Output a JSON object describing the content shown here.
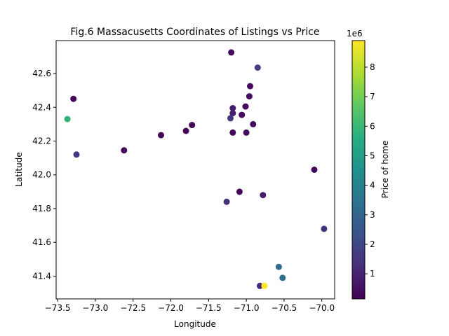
{
  "chart_data": {
    "type": "scatter",
    "title": "Fig.6 Massacusetts Coordinates of Listings vs Price",
    "xlabel": "Longitude",
    "ylabel": "Latitude",
    "xlim": [
      -73.52,
      -69.83
    ],
    "ylim": [
      41.265,
      42.795
    ],
    "xticks": [
      -73.5,
      -73.0,
      -72.5,
      -72.0,
      -71.5,
      -71.0,
      -70.5,
      -70.0
    ],
    "xtick_labels": [
      "−73.5",
      "−73.0",
      "−72.5",
      "−72.0",
      "−71.5",
      "−71.0",
      "−70.5",
      "−70.0"
    ],
    "yticks": [
      41.4,
      41.6,
      41.8,
      42.0,
      42.2,
      42.4,
      42.6
    ],
    "ytick_labels": [
      "41.4",
      "41.6",
      "41.8",
      "42.0",
      "42.2",
      "42.4",
      "42.6"
    ],
    "grid": false,
    "colorbar": {
      "label": "Price of home",
      "multiplier_label": "1e6",
      "range": [
        0.15,
        8.9
      ],
      "ticks": [
        1,
        2,
        3,
        4,
        5,
        6,
        7,
        8
      ],
      "tick_labels": [
        "1",
        "2",
        "3",
        "4",
        "5",
        "6",
        "7",
        "8"
      ],
      "colormap": "viridis"
    },
    "points": [
      {
        "x": -71.2,
        "y": 42.725,
        "price": 0.3
      },
      {
        "x": -70.85,
        "y": 42.635,
        "price": 1.8
      },
      {
        "x": -70.95,
        "y": 42.525,
        "price": 0.35
      },
      {
        "x": -73.29,
        "y": 42.45,
        "price": 0.25
      },
      {
        "x": -70.96,
        "y": 42.465,
        "price": 0.45
      },
      {
        "x": -71.01,
        "y": 42.405,
        "price": 0.3
      },
      {
        "x": -71.18,
        "y": 42.395,
        "price": 0.8
      },
      {
        "x": -71.18,
        "y": 42.365,
        "price": 0.9
      },
      {
        "x": -71.06,
        "y": 42.355,
        "price": 0.4
      },
      {
        "x": -71.21,
        "y": 42.335,
        "price": 1.5
      },
      {
        "x": -73.37,
        "y": 42.33,
        "price": 5.8
      },
      {
        "x": -70.91,
        "y": 42.3,
        "price": 0.4
      },
      {
        "x": -71.72,
        "y": 42.295,
        "price": 0.35
      },
      {
        "x": -71.8,
        "y": 42.26,
        "price": 0.2
      },
      {
        "x": -71.18,
        "y": 42.25,
        "price": 0.3
      },
      {
        "x": -71.0,
        "y": 42.25,
        "price": 0.5
      },
      {
        "x": -72.13,
        "y": 42.235,
        "price": 0.3
      },
      {
        "x": -72.62,
        "y": 42.145,
        "price": 0.35
      },
      {
        "x": -73.25,
        "y": 42.12,
        "price": 1.6
      },
      {
        "x": -70.1,
        "y": 42.03,
        "price": 0.3
      },
      {
        "x": -71.09,
        "y": 41.9,
        "price": 0.2
      },
      {
        "x": -70.78,
        "y": 41.88,
        "price": 0.8
      },
      {
        "x": -71.26,
        "y": 41.84,
        "price": 1.3
      },
      {
        "x": -69.97,
        "y": 41.68,
        "price": 1.4
      },
      {
        "x": -70.57,
        "y": 41.455,
        "price": 3.2
      },
      {
        "x": -70.52,
        "y": 41.39,
        "price": 3.3
      },
      {
        "x": -70.82,
        "y": 41.342,
        "price": 1.1
      },
      {
        "x": -70.76,
        "y": 41.342,
        "price": 8.9
      }
    ]
  }
}
